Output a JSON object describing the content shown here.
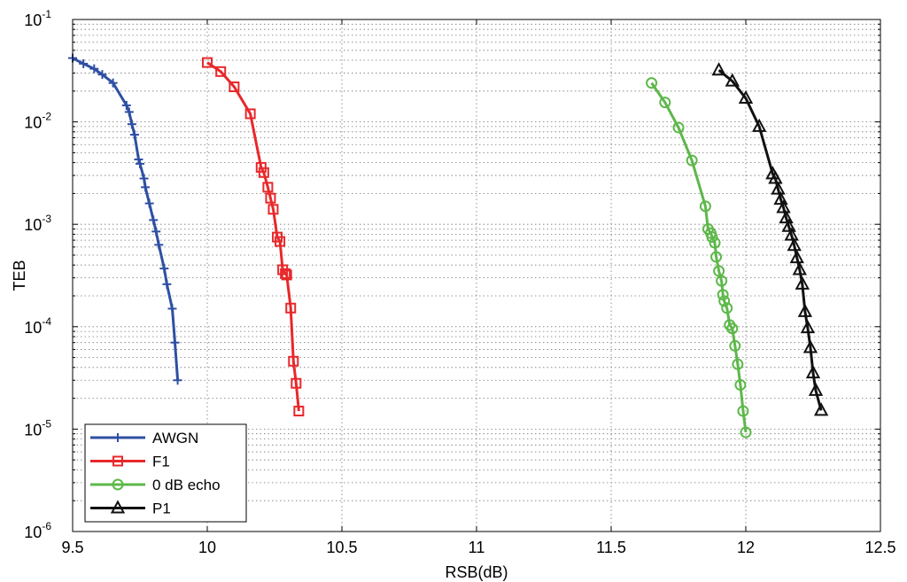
{
  "chart_data": {
    "type": "line",
    "xlabel": "RSB(dB)",
    "ylabel": "TEB",
    "xlim": [
      9.5,
      12.5
    ],
    "ylim": [
      1e-06,
      0.1
    ],
    "yscale": "log",
    "grid": true,
    "legend_position": "bottom-left",
    "x_ticks": [
      "9.5",
      "10",
      "10.5",
      "11",
      "11.5",
      "12",
      "12.5"
    ],
    "y_ticks": [
      {
        "base": "10",
        "exp": "-6"
      },
      {
        "base": "10",
        "exp": "-5"
      },
      {
        "base": "10",
        "exp": "-4"
      },
      {
        "base": "10",
        "exp": "-3"
      },
      {
        "base": "10",
        "exp": "-2"
      },
      {
        "base": "10",
        "exp": "-1"
      }
    ],
    "series": [
      {
        "name": "AWGN",
        "color": "#2e4fa3",
        "marker": "plus",
        "x": [
          9.5,
          9.54,
          9.58,
          9.61,
          9.65,
          9.7,
          9.71,
          9.72,
          9.73,
          9.745,
          9.75,
          9.765,
          9.77,
          9.785,
          9.8,
          9.81,
          9.82,
          9.84,
          9.85,
          9.87,
          9.88,
          9.89
        ],
        "y": [
          0.042,
          0.037,
          0.033,
          0.029,
          0.024,
          0.0145,
          0.0125,
          0.0095,
          0.0075,
          0.0043,
          0.0039,
          0.0028,
          0.0023,
          0.0016,
          0.0011,
          0.00085,
          0.00063,
          0.00037,
          0.00026,
          0.00015,
          7e-05,
          3e-05
        ]
      },
      {
        "name": "F1",
        "color": "#e8282b",
        "marker": "square",
        "x": [
          10.0,
          10.05,
          10.1,
          10.16,
          10.2,
          10.21,
          10.225,
          10.235,
          10.245,
          10.26,
          10.27,
          10.28,
          10.29,
          10.295,
          10.31,
          10.32,
          10.33,
          10.34
        ],
        "y": [
          0.038,
          0.031,
          0.022,
          0.012,
          0.0036,
          0.0032,
          0.0023,
          0.0018,
          0.0014,
          0.00075,
          0.00068,
          0.00036,
          0.00033,
          0.00032,
          0.000152,
          4.6e-05,
          2.8e-05,
          1.5e-05
        ]
      },
      {
        "name": "0 dB echo",
        "color": "#5db84a",
        "marker": "circle",
        "x": [
          11.65,
          11.7,
          11.75,
          11.8,
          11.85,
          11.86,
          11.87,
          11.875,
          11.885,
          11.89,
          11.9,
          11.91,
          11.915,
          11.92,
          11.93,
          11.94,
          11.95,
          11.96,
          11.97,
          11.98,
          11.99,
          12.0
        ],
        "y": [
          0.024,
          0.0155,
          0.0088,
          0.0042,
          0.0015,
          0.0009,
          0.00082,
          0.00075,
          0.00066,
          0.00048,
          0.00035,
          0.00028,
          0.000205,
          0.000178,
          0.000152,
          0.000104,
          9.6e-05,
          6.5e-05,
          4.3e-05,
          2.7e-05,
          1.5e-05,
          9.3e-06
        ]
      },
      {
        "name": "P1",
        "color": "#111111",
        "marker": "triangle",
        "x": [
          11.9,
          11.95,
          12.0,
          12.05,
          12.1,
          12.11,
          12.12,
          12.13,
          12.14,
          12.15,
          12.16,
          12.17,
          12.18,
          12.19,
          12.2,
          12.21,
          12.22,
          12.23,
          12.24,
          12.25,
          12.26,
          12.28
        ],
        "y": [
          0.032,
          0.025,
          0.017,
          0.009,
          0.0031,
          0.0028,
          0.0022,
          0.00175,
          0.00145,
          0.00115,
          0.00095,
          0.00078,
          0.00062,
          0.00047,
          0.00036,
          0.00026,
          0.00014,
          9.75e-05,
          6.23e-05,
          3.53e-05,
          2.38e-05,
          1.52e-05
        ]
      }
    ]
  }
}
